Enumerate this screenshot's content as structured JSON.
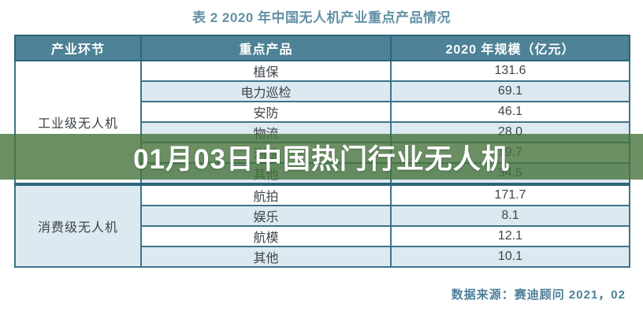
{
  "page": {
    "title": "表 2 2020 年中国无人机产业重点产品情况",
    "source": "数据来源：赛迪顾问  2021，02"
  },
  "banner": {
    "text": "01月03日中国热门行业无人机"
  },
  "table": {
    "headers": [
      "产业环节",
      "重点产品",
      "2020 年规模（亿元）"
    ],
    "groups": [
      {
        "category": "工业级无人机",
        "rows": [
          {
            "product": "植保",
            "value": "131.6"
          },
          {
            "product": "电力巡检",
            "value": "69.1"
          },
          {
            "product": "安防",
            "value": "46.1"
          },
          {
            "product": "物流",
            "value": "28.0"
          },
          {
            "product": "测绘",
            "value": "19.7"
          },
          {
            "product": "其他",
            "value": "34.5"
          }
        ]
      },
      {
        "category": "消费级无人机",
        "rows": [
          {
            "product": "航拍",
            "value": "171.7"
          },
          {
            "product": "娱乐",
            "value": "8.1"
          },
          {
            "product": "航模",
            "value": "12.1"
          },
          {
            "product": "其他",
            "value": "10.1"
          }
        ]
      }
    ]
  },
  "chart_data": {
    "type": "table",
    "title": "表 2 2020 年中国无人机产业重点产品情况",
    "columns": [
      "产业环节",
      "重点产品",
      "2020 年规模（亿元）"
    ],
    "rows": [
      [
        "工业级无人机",
        "植保",
        131.6
      ],
      [
        "工业级无人机",
        "电力巡检",
        69.1
      ],
      [
        "工业级无人机",
        "安防",
        46.1
      ],
      [
        "工业级无人机",
        "物流",
        28.0
      ],
      [
        "工业级无人机",
        "测绘",
        19.7
      ],
      [
        "工业级无人机",
        "其他",
        34.5
      ],
      [
        "消费级无人机",
        "航拍",
        171.7
      ],
      [
        "消费级无人机",
        "娱乐",
        8.1
      ],
      [
        "消费级无人机",
        "航模",
        12.1
      ],
      [
        "消费级无人机",
        "其他",
        10.1
      ]
    ],
    "source": "数据来源：赛迪顾问  2021，02",
    "overlay_caption": "01月03日中国热门行业无人机"
  },
  "colors": {
    "header_bg": "#4e8296",
    "row_alt_bg": "#dde9f1",
    "border": "#3c7488",
    "border_dark": "#2c6579",
    "overlay_green": "rgba(70,115,60,0.8)",
    "title_text": "#6391a6",
    "source_text": "#4d7f99",
    "banner_text": "#ffffff",
    "value_text": "#50575d"
  }
}
